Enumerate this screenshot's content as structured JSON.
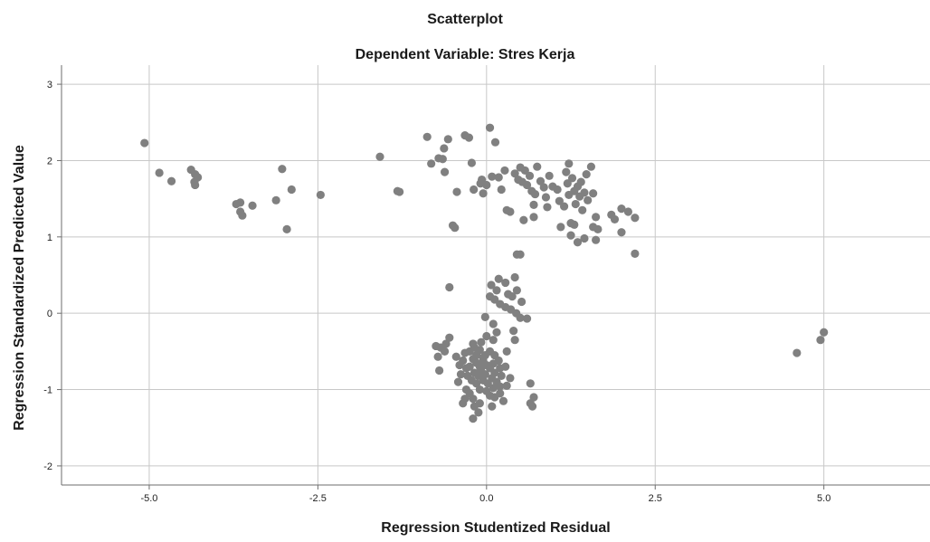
{
  "chart_data": {
    "type": "scatter",
    "title": "Scatterplot",
    "subtitle": "Dependent Variable: Stres Kerja",
    "xlabel": "Regression Studentized Residual",
    "ylabel": "Regression Standardized Predicted Value",
    "xlim": [
      -6.3,
      6.6
    ],
    "ylim": [
      -2.25,
      3.25
    ],
    "xticks": [
      -5.0,
      -2.5,
      0.0,
      2.5,
      5.0
    ],
    "xtick_labels": [
      "-5.0",
      "-2.5",
      "0.0",
      "2.5",
      "5.0"
    ],
    "yticks": [
      -2,
      -1,
      0,
      1,
      2,
      3
    ],
    "ytick_labels": [
      "-2",
      "-1",
      "0",
      "1",
      "2",
      "3"
    ],
    "grid": true,
    "point_color": "#808080",
    "points": [
      [
        -5.07,
        2.23
      ],
      [
        -4.85,
        1.84
      ],
      [
        -4.67,
        1.73
      ],
      [
        -4.38,
        1.88
      ],
      [
        -4.32,
        1.82
      ],
      [
        -4.33,
        1.72
      ],
      [
        -4.32,
        1.68
      ],
      [
        -4.28,
        1.78
      ],
      [
        -3.71,
        1.43
      ],
      [
        -3.65,
        1.33
      ],
      [
        -3.62,
        1.28
      ],
      [
        -3.65,
        1.45
      ],
      [
        -3.47,
        1.41
      ],
      [
        -3.12,
        1.48
      ],
      [
        -3.03,
        1.89
      ],
      [
        -2.89,
        1.62
      ],
      [
        -2.96,
        1.1
      ],
      [
        -2.46,
        1.55
      ],
      [
        -1.58,
        2.05
      ],
      [
        -1.32,
        1.6
      ],
      [
        -1.29,
        1.59
      ],
      [
        -0.88,
        2.31
      ],
      [
        -0.82,
        1.96
      ],
      [
        -0.71,
        2.03
      ],
      [
        -0.65,
        2.02
      ],
      [
        -0.63,
        2.16
      ],
      [
        -0.62,
        1.85
      ],
      [
        -0.57,
        2.28
      ],
      [
        -0.5,
        1.15
      ],
      [
        -0.47,
        1.12
      ],
      [
        -0.44,
        1.59
      ],
      [
        -0.32,
        2.33
      ],
      [
        -0.26,
        2.3
      ],
      [
        -0.22,
        1.97
      ],
      [
        -0.19,
        1.62
      ],
      [
        -0.09,
        1.7
      ],
      [
        -0.07,
        1.75
      ],
      [
        -0.05,
        1.57
      ],
      [
        0.0,
        1.68
      ],
      [
        0.05,
        2.43
      ],
      [
        0.08,
        1.79
      ],
      [
        0.13,
        2.24
      ],
      [
        0.18,
        1.78
      ],
      [
        0.22,
        1.62
      ],
      [
        0.27,
        1.87
      ],
      [
        0.3,
        1.35
      ],
      [
        0.35,
        1.33
      ],
      [
        0.42,
        1.83
      ],
      [
        0.47,
        1.75
      ],
      [
        0.5,
        1.91
      ],
      [
        0.53,
        1.72
      ],
      [
        0.57,
        1.87
      ],
      [
        0.6,
        1.68
      ],
      [
        0.64,
        1.8
      ],
      [
        0.67,
        1.6
      ],
      [
        0.7,
        1.42
      ],
      [
        0.72,
        1.56
      ],
      [
        0.75,
        1.92
      ],
      [
        0.8,
        1.73
      ],
      [
        0.85,
        1.65
      ],
      [
        0.88,
        1.52
      ],
      [
        0.9,
        1.39
      ],
      [
        0.93,
        1.8
      ],
      [
        0.98,
        1.66
      ],
      [
        0.55,
        1.22
      ],
      [
        0.7,
        1.26
      ],
      [
        1.05,
        1.62
      ],
      [
        1.08,
        1.47
      ],
      [
        1.1,
        1.13
      ],
      [
        1.15,
        1.4
      ],
      [
        1.18,
        1.85
      ],
      [
        1.2,
        1.7
      ],
      [
        1.22,
        1.55
      ],
      [
        1.25,
        1.18
      ],
      [
        1.27,
        1.77
      ],
      [
        1.3,
        1.6
      ],
      [
        1.32,
        1.43
      ],
      [
        1.35,
        1.66
      ],
      [
        1.38,
        1.53
      ],
      [
        1.4,
        1.72
      ],
      [
        1.42,
        1.35
      ],
      [
        1.45,
        1.58
      ],
      [
        1.48,
        1.82
      ],
      [
        1.5,
        1.48
      ],
      [
        1.55,
        1.92
      ],
      [
        1.58,
        1.57
      ],
      [
        1.62,
        1.26
      ],
      [
        1.65,
        1.1
      ],
      [
        1.22,
        1.96
      ],
      [
        1.25,
        1.02
      ],
      [
        1.3,
        1.16
      ],
      [
        1.35,
        0.93
      ],
      [
        1.45,
        0.98
      ],
      [
        1.58,
        1.13
      ],
      [
        1.62,
        0.96
      ],
      [
        1.85,
        1.29
      ],
      [
        1.9,
        1.23
      ],
      [
        2.0,
        1.06
      ],
      [
        2.0,
        1.37
      ],
      [
        2.1,
        1.33
      ],
      [
        2.2,
        1.25
      ],
      [
        2.2,
        0.78
      ],
      [
        0.45,
        0.77
      ],
      [
        0.5,
        0.77
      ],
      [
        -0.55,
        0.34
      ],
      [
        0.07,
        0.37
      ],
      [
        0.15,
        0.3
      ],
      [
        0.18,
        0.45
      ],
      [
        0.28,
        0.4
      ],
      [
        0.42,
        0.47
      ],
      [
        0.05,
        0.22
      ],
      [
        0.12,
        0.18
      ],
      [
        0.2,
        0.12
      ],
      [
        0.28,
        0.08
      ],
      [
        0.36,
        0.05
      ],
      [
        0.44,
        0.0
      ],
      [
        0.32,
        0.25
      ],
      [
        0.38,
        0.22
      ],
      [
        0.45,
        0.3
      ],
      [
        0.52,
        0.15
      ],
      [
        0.5,
        -0.06
      ],
      [
        0.6,
        -0.07
      ],
      [
        -0.02,
        -0.05
      ],
      [
        0.1,
        -0.14
      ],
      [
        0.15,
        -0.25
      ],
      [
        0.4,
        -0.23
      ],
      [
        0.42,
        -0.35
      ],
      [
        0.3,
        -0.5
      ],
      [
        -0.55,
        -0.32
      ],
      [
        -0.6,
        -0.4
      ],
      [
        -0.75,
        -0.43
      ],
      [
        -0.68,
        -0.45
      ],
      [
        -0.45,
        -0.57
      ],
      [
        -0.62,
        -0.5
      ],
      [
        -0.72,
        -0.57
      ],
      [
        -0.7,
        -0.75
      ],
      [
        -0.2,
        -0.6
      ],
      [
        -0.15,
        -0.65
      ],
      [
        -0.1,
        -0.7
      ],
      [
        -0.05,
        -0.62
      ],
      [
        0.0,
        -0.68
      ],
      [
        -0.18,
        -0.78
      ],
      [
        -0.12,
        -0.82
      ],
      [
        -0.08,
        -0.75
      ],
      [
        -0.02,
        -0.8
      ],
      [
        0.05,
        -0.72
      ],
      [
        0.1,
        -0.66
      ],
      [
        0.12,
        -0.78
      ],
      [
        -0.25,
        -0.7
      ],
      [
        -0.3,
        -0.72
      ],
      [
        -0.28,
        -0.82
      ],
      [
        -0.22,
        -0.88
      ],
      [
        -0.15,
        -0.92
      ],
      [
        -0.05,
        -0.88
      ],
      [
        0.02,
        -0.92
      ],
      [
        0.08,
        -0.85
      ],
      [
        0.15,
        -0.9
      ],
      [
        -0.35,
        -0.62
      ],
      [
        -0.32,
        -0.52
      ],
      [
        -0.25,
        -0.5
      ],
      [
        -0.18,
        -0.45
      ],
      [
        -0.1,
        -0.48
      ],
      [
        -0.02,
        -0.55
      ],
      [
        0.05,
        -0.5
      ],
      [
        0.12,
        -0.55
      ],
      [
        0.18,
        -0.62
      ],
      [
        -0.2,
        -0.4
      ],
      [
        -0.08,
        -0.38
      ],
      [
        0.0,
        -0.3
      ],
      [
        0.1,
        -0.35
      ],
      [
        -0.15,
        -0.55
      ],
      [
        -0.05,
        -0.58
      ],
      [
        0.2,
        -0.72
      ],
      [
        0.22,
        -0.82
      ],
      [
        0.28,
        -0.7
      ],
      [
        -0.4,
        -0.68
      ],
      [
        -0.38,
        -0.8
      ],
      [
        -0.42,
        -0.9
      ],
      [
        -0.1,
        -1.0
      ],
      [
        0.0,
        -1.02
      ],
      [
        0.1,
        -0.98
      ],
      [
        0.2,
        -0.96
      ],
      [
        -0.3,
        -1.0
      ],
      [
        -0.25,
        -1.05
      ],
      [
        -0.2,
        -1.12
      ],
      [
        -0.18,
        -1.22
      ],
      [
        -0.1,
        -1.18
      ],
      [
        0.05,
        -1.08
      ],
      [
        0.12,
        -1.1
      ],
      [
        0.2,
        -1.05
      ],
      [
        0.25,
        -1.15
      ],
      [
        -0.32,
        -1.12
      ],
      [
        -0.2,
        -1.38
      ],
      [
        -0.35,
        -1.18
      ],
      [
        -0.12,
        -1.3
      ],
      [
        0.35,
        -0.85
      ],
      [
        0.3,
        -0.95
      ],
      [
        0.08,
        -1.22
      ],
      [
        0.65,
        -0.92
      ],
      [
        0.7,
        -1.1
      ],
      [
        0.65,
        -1.18
      ],
      [
        0.68,
        -1.22
      ],
      [
        4.6,
        -0.52
      ],
      [
        4.95,
        -0.35
      ],
      [
        5.0,
        -0.25
      ]
    ]
  }
}
